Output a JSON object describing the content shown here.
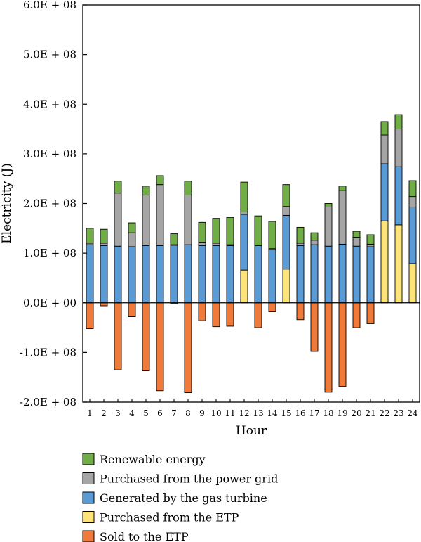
{
  "chart_data": {
    "type": "bar",
    "stacked": true,
    "xlabel": "Hour",
    "ylabel": "Electricity (J)",
    "ylim": [
      -200000000,
      600000000
    ],
    "yticks": [
      -200000000,
      -100000000,
      0,
      100000000,
      200000000,
      300000000,
      400000000,
      500000000,
      600000000
    ],
    "ytick_labels": [
      "-2.0E + 08",
      "-1.0E + 08",
      "0.0E + 00",
      "1.0E + 08",
      "2.0E + 08",
      "3.0E + 08",
      "4.0E + 08",
      "5.0E + 08",
      "6.0E + 08"
    ],
    "categories": [
      "1",
      "2",
      "3",
      "4",
      "5",
      "6",
      "7",
      "8",
      "9",
      "10",
      "11",
      "12",
      "13",
      "14",
      "15",
      "16",
      "17",
      "18",
      "19",
      "20",
      "21",
      "22",
      "23",
      "24"
    ],
    "grid": false,
    "legend_position": "bottom",
    "series": [
      {
        "name": "Sold to the ETP",
        "color": "#ef7a3a",
        "values": [
          -52000000,
          -6000000,
          -135000000,
          -28000000,
          -137000000,
          -177000000,
          -2000000,
          -181000000,
          -36000000,
          -48000000,
          -47000000,
          0,
          -50000000,
          -18000000,
          0,
          -34000000,
          -98000000,
          -180000000,
          -168000000,
          -50000000,
          -42000000,
          0,
          0,
          0
        ]
      },
      {
        "name": "Purchased from the ETP",
        "color": "#fde47a",
        "values": [
          0,
          0,
          0,
          0,
          0,
          0,
          0,
          0,
          0,
          0,
          0,
          66000000,
          0,
          0,
          68000000,
          0,
          0,
          0,
          0,
          0,
          0,
          165000000,
          157000000,
          79000000
        ]
      },
      {
        "name": "Generated by the gas turbine",
        "color": "#5b9bd5",
        "values": [
          117000000,
          115000000,
          114000000,
          113000000,
          115000000,
          115000000,
          116000000,
          117000000,
          115000000,
          115000000,
          115000000,
          112000000,
          115000000,
          107000000,
          108000000,
          115000000,
          117000000,
          114000000,
          118000000,
          114000000,
          113000000,
          115000000,
          117000000,
          114000000
        ]
      },
      {
        "name": "Purchased from the power grid",
        "color": "#a5a5a5",
        "values": [
          3000000,
          5000000,
          107000000,
          28000000,
          102000000,
          123000000,
          1000000,
          100000000,
          7000000,
          5000000,
          2000000,
          5000000,
          0,
          2000000,
          18000000,
          5000000,
          9000000,
          79000000,
          108000000,
          18000000,
          5000000,
          58000000,
          76000000,
          21000000
        ]
      },
      {
        "name": "Renewable energy",
        "color": "#70ad47",
        "values": [
          30000000,
          28000000,
          24000000,
          20000000,
          18000000,
          18000000,
          22000000,
          28000000,
          40000000,
          50000000,
          55000000,
          60000000,
          60000000,
          55000000,
          44000000,
          32000000,
          15000000,
          7000000,
          9000000,
          12000000,
          19000000,
          27000000,
          29000000,
          32000000
        ]
      }
    ],
    "legend_order": [
      "Renewable energy",
      "Purchased from the power grid",
      "Generated by the gas turbine",
      "Purchased from the ETP",
      "Sold to the ETP"
    ]
  }
}
